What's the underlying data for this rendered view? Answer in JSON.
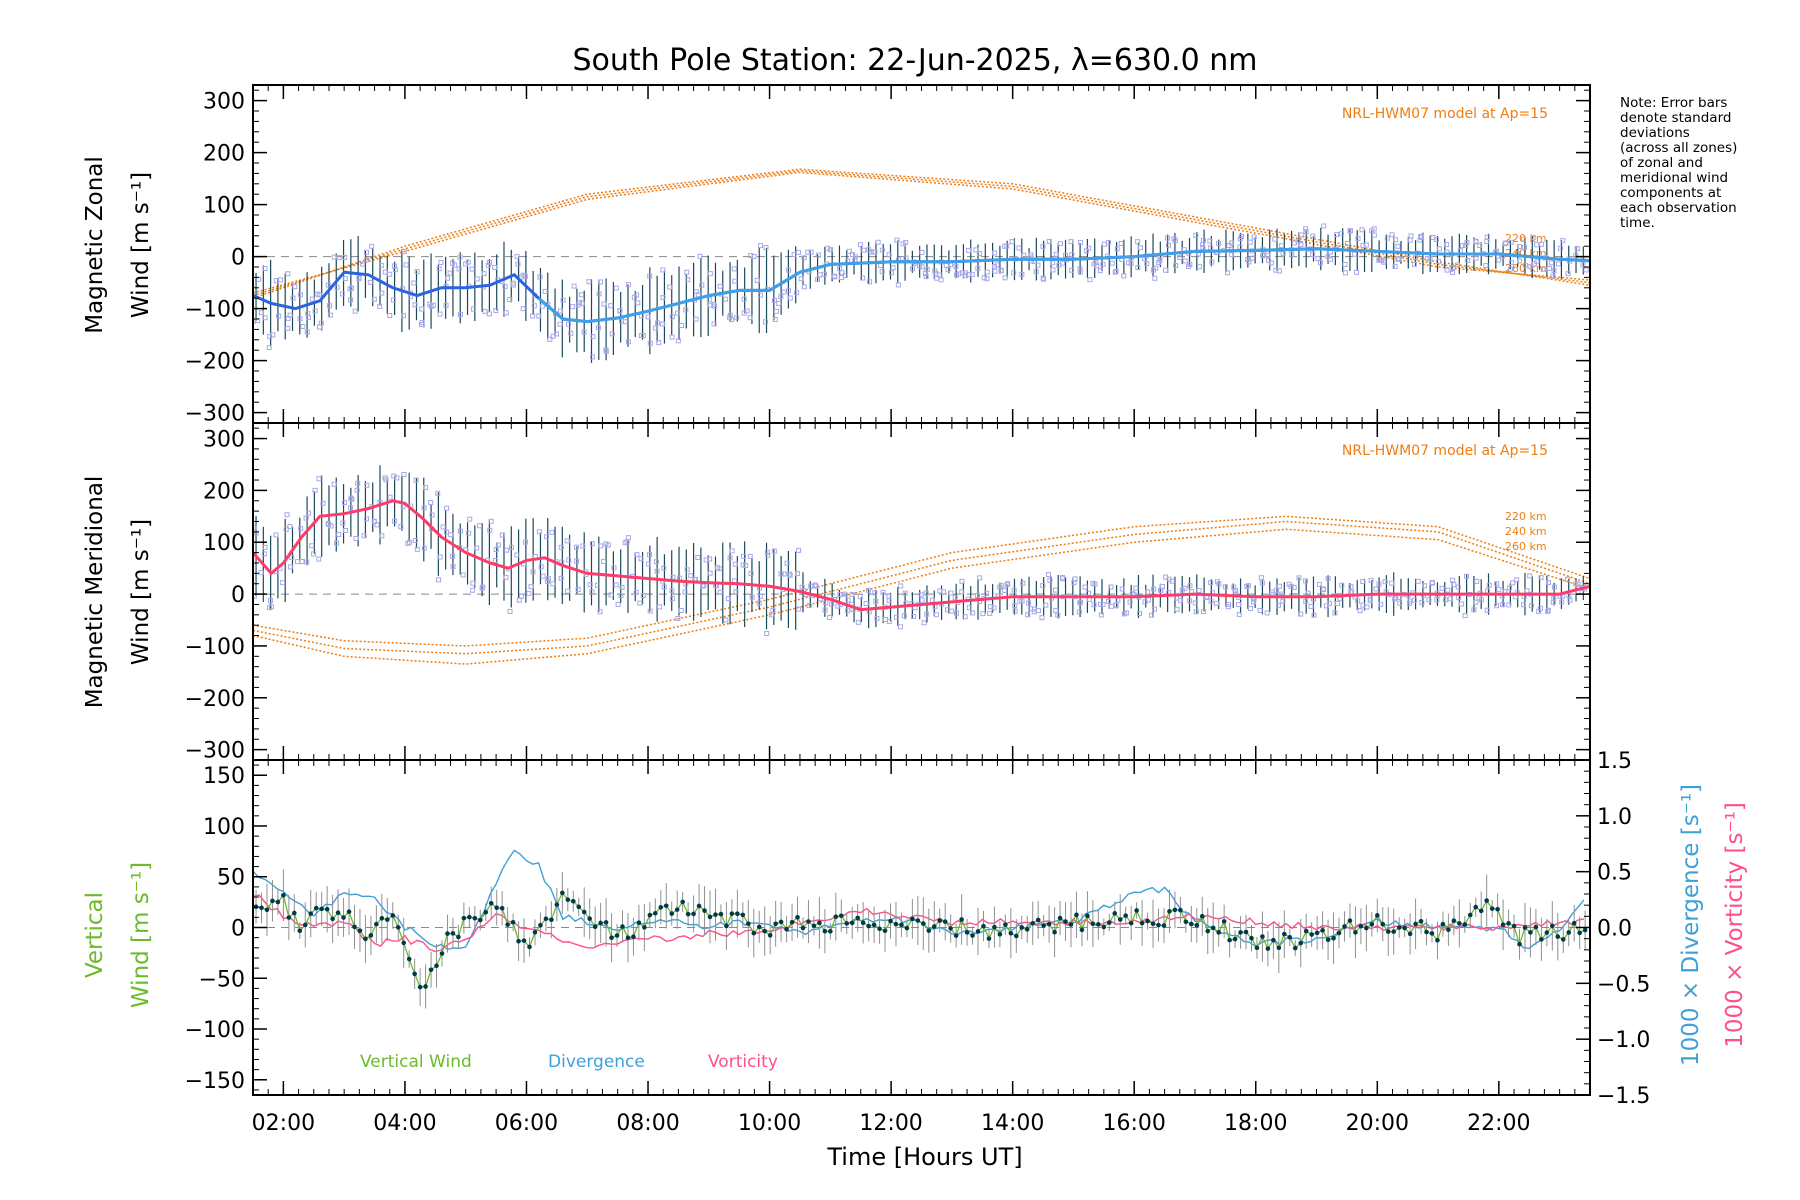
{
  "title": "South Pole Station: 22-Jun-2025, λ=630.0 nm",
  "colors": {
    "axis": "#000000",
    "model": "#f07d12",
    "zonal_line": "#2b63e0",
    "zonal_line_light": "#3fa0e8",
    "meridional_line": "#ff3b6b",
    "scatter": "#a8a8e8",
    "vertical": "#6cbb2a",
    "divergence": "#3fa0d8",
    "vorticity": "#ff4f86",
    "points": "#003a4a",
    "error": "#909090"
  },
  "note_lines": [
    "Note: Error bars",
    "denote standard",
    "deviations",
    "(across all zones)",
    "of zonal and",
    "meridional wind",
    "components at",
    "each observation",
    "time."
  ],
  "chart_data": [
    {
      "type": "line",
      "panel": "zonal",
      "ylabel_line1": "Magnetic Zonal",
      "ylabel_line2": "Wind [m s⁻¹]",
      "ylim": [
        -320,
        330
      ],
      "yticks": [
        300,
        200,
        100,
        0,
        -100,
        -200,
        -300
      ],
      "ytick_labels": [
        "300",
        "200",
        "100",
        "0",
        "−100",
        "−200",
        "−300"
      ],
      "model_label": "NRL-HWM07 model at Ap=15",
      "altitude_labels": [
        "220 km",
        "240 km",
        "260 km"
      ],
      "model_curves": [
        {
          "x": [
            1.5,
            4,
            7,
            10.5,
            14,
            18,
            21,
            23.5
          ],
          "y": [
            -80,
            20,
            120,
            168,
            140,
            55,
            -10,
            -55
          ]
        },
        {
          "x": [
            1.5,
            4,
            7,
            10.5,
            14,
            18,
            21,
            23.5
          ],
          "y": [
            -75,
            15,
            115,
            165,
            135,
            50,
            -15,
            -50
          ]
        },
        {
          "x": [
            1.5,
            4,
            7,
            10.5,
            14,
            18,
            21,
            23.5
          ],
          "y": [
            -70,
            10,
            110,
            162,
            130,
            45,
            -20,
            -45
          ]
        }
      ],
      "mean": {
        "x": [
          1.5,
          1.8,
          2.2,
          2.6,
          3.0,
          3.4,
          3.8,
          4.2,
          4.6,
          5.0,
          5.4,
          5.8,
          6.2,
          6.6,
          7.0,
          7.5,
          8.0,
          8.5,
          9.0,
          9.5,
          10.0,
          10.5,
          11.0,
          12.0,
          13.0,
          14.0,
          15.0,
          16.0,
          17.0,
          18.0,
          19.0,
          20.0,
          21.0,
          22.0,
          23.0,
          23.5
        ],
        "y": [
          -75,
          -90,
          -100,
          -85,
          -30,
          -35,
          -60,
          -75,
          -60,
          -60,
          -55,
          -35,
          -80,
          -120,
          -125,
          -118,
          -105,
          -90,
          -75,
          -65,
          -65,
          -30,
          -15,
          -10,
          -10,
          -5,
          -5,
          0,
          10,
          12,
          15,
          10,
          5,
          5,
          -5,
          -8
        ]
      }
    },
    {
      "type": "line",
      "panel": "meridional",
      "ylabel_line1": "Magnetic Meridional",
      "ylabel_line2": "Wind [m s⁻¹]",
      "ylim": [
        -320,
        330
      ],
      "yticks": [
        300,
        200,
        100,
        0,
        -100,
        -200,
        -300
      ],
      "ytick_labels": [
        "300",
        "200",
        "100",
        "0",
        "−100",
        "−200",
        "−300"
      ],
      "model_label": "NRL-HWM07 model at Ap=15",
      "altitude_labels": [
        "220 km",
        "240 km",
        "260 km"
      ],
      "model_curves": [
        {
          "x": [
            1.5,
            3,
            5,
            7,
            10,
            13,
            16,
            18.5,
            21,
            23.5
          ],
          "y": [
            -60,
            -90,
            -100,
            -85,
            -10,
            80,
            130,
            150,
            130,
            30
          ]
        },
        {
          "x": [
            1.5,
            3,
            5,
            7,
            10,
            13,
            16,
            18.5,
            21,
            23.5
          ],
          "y": [
            -70,
            -105,
            -115,
            -100,
            -25,
            65,
            115,
            140,
            120,
            20
          ]
        },
        {
          "x": [
            1.5,
            3,
            5,
            7,
            10,
            13,
            16,
            18.5,
            21,
            23.5
          ],
          "y": [
            -80,
            -120,
            -135,
            -115,
            -40,
            50,
            100,
            125,
            105,
            10
          ]
        }
      ],
      "mean": {
        "x": [
          1.5,
          1.8,
          2.0,
          2.3,
          2.6,
          3.0,
          3.4,
          3.8,
          4.0,
          4.3,
          4.6,
          5.0,
          5.4,
          5.7,
          6.0,
          6.3,
          6.6,
          7.0,
          7.5,
          8.0,
          8.5,
          9.0,
          9.5,
          10.0,
          10.5,
          11.0,
          11.5,
          12.0,
          13.0,
          14.0,
          15.0,
          16.0,
          17.0,
          18.0,
          19.0,
          20.0,
          21.0,
          22.0,
          23.0,
          23.5
        ],
        "y": [
          80,
          40,
          60,
          110,
          150,
          155,
          165,
          180,
          175,
          145,
          110,
          80,
          60,
          50,
          65,
          70,
          55,
          40,
          35,
          30,
          25,
          22,
          20,
          15,
          5,
          -10,
          -30,
          -25,
          -15,
          -5,
          -5,
          -5,
          0,
          -5,
          -5,
          0,
          0,
          0,
          0,
          15
        ]
      }
    },
    {
      "type": "line",
      "panel": "vertical",
      "ylabel_line1": "Vertical",
      "ylabel_line2": "Wind [m s⁻¹]",
      "ylim": [
        -165,
        165
      ],
      "yticks": [
        150,
        100,
        50,
        0,
        -50,
        -100,
        -150
      ],
      "ytick_labels": [
        "150",
        "100",
        "50",
        "0",
        "−50",
        "−100",
        "−150"
      ],
      "right_ylim": [
        -1.5,
        1.5
      ],
      "right_yticks": [
        1.5,
        1.0,
        0.5,
        0.0,
        -0.5,
        -1.0,
        -1.5
      ],
      "right_ytick_labels": [
        "1.5",
        "1.0",
        "0.5",
        "0.0",
        "−0.5",
        "−1.0",
        "−1.5"
      ],
      "right_ylabel_divergence": "1000 × Divergence [s⁻¹]",
      "right_ylabel_vorticity": "1000 × Vorticity [s⁻¹]",
      "legend": [
        "Vertical Wind",
        "Divergence",
        "Vorticity"
      ],
      "series": [
        {
          "name": "Vertical Wind",
          "x": [
            1.5,
            2.0,
            2.3,
            2.6,
            3.0,
            3.4,
            3.8,
            4.3,
            4.7,
            5.2,
            5.6,
            5.9,
            6.3,
            6.6,
            7.0,
            7.5,
            8.0,
            8.5,
            9.0,
            9.5,
            10.0,
            11.0,
            12.0,
            13.0,
            14.0,
            15.0,
            16.0,
            17.0,
            18.0,
            19.0,
            20.0,
            21.0,
            21.8,
            22.3,
            23.0,
            23.5
          ],
          "y": [
            20,
            30,
            -10,
            20,
            10,
            -5,
            5,
            -60,
            -10,
            10,
            25,
            -20,
            5,
            30,
            10,
            -10,
            5,
            20,
            10,
            5,
            0,
            5,
            0,
            0,
            -5,
            5,
            10,
            10,
            -15,
            -10,
            5,
            -5,
            25,
            -10,
            -5,
            5
          ]
        },
        {
          "name": "Divergence",
          "x": [
            1.5,
            2.0,
            2.5,
            3.0,
            3.5,
            4.0,
            4.5,
            5.0,
            5.5,
            5.8,
            6.2,
            6.6,
            7.0,
            7.5,
            8.0,
            8.5,
            9.0,
            9.5,
            10.0,
            10.5,
            11.0,
            12.0,
            13.0,
            14.0,
            15.0,
            16.0,
            16.5,
            17.0,
            18.0,
            19.0,
            20.0,
            21.0,
            22.0,
            22.5,
            23.0,
            23.5
          ],
          "y": [
            0.5,
            0.3,
            0.1,
            0.3,
            0.25,
            0.0,
            -0.15,
            -0.2,
            0.4,
            0.7,
            0.55,
            0.1,
            0.05,
            0.0,
            0.05,
            0.05,
            0.0,
            0.05,
            0.02,
            -0.05,
            0.02,
            0.1,
            -0.05,
            0.0,
            0.05,
            0.3,
            0.35,
            0.05,
            -0.15,
            -0.1,
            0.05,
            0.0,
            0.0,
            -0.2,
            0.0,
            0.3
          ]
        },
        {
          "name": "Vorticity",
          "x": [
            1.5,
            2.0,
            2.5,
            3.0,
            3.5,
            4.0,
            4.5,
            5.0,
            5.5,
            6.0,
            6.5,
            7.0,
            7.5,
            8.0,
            8.5,
            9.0,
            9.5,
            10.0,
            10.5,
            11.0,
            11.5,
            12.0,
            13.0,
            14.0,
            15.0,
            16.0,
            17.0,
            18.0,
            19.0,
            20.0,
            21.0,
            22.0,
            23.0,
            23.5
          ],
          "y": [
            0.3,
            0.1,
            0.0,
            0.05,
            -0.15,
            -0.1,
            -0.2,
            -0.1,
            0.1,
            0.0,
            -0.1,
            -0.2,
            -0.15,
            -0.1,
            -0.1,
            -0.05,
            -0.05,
            -0.05,
            0.05,
            0.1,
            0.15,
            0.12,
            0.05,
            0.05,
            0.05,
            0.05,
            0.1,
            0.05,
            0.0,
            0.0,
            0.0,
            0.0,
            0.05,
            0.05
          ]
        }
      ]
    }
  ],
  "x_axis": {
    "xlim": [
      1.5,
      23.5
    ],
    "ticks": [
      2,
      4,
      6,
      8,
      10,
      12,
      14,
      16,
      18,
      20,
      22
    ],
    "tick_labels": [
      "02:00",
      "04:00",
      "06:00",
      "08:00",
      "10:00",
      "12:00",
      "14:00",
      "16:00",
      "18:00",
      "20:00",
      "22:00"
    ],
    "label": "Time [Hours UT]"
  }
}
